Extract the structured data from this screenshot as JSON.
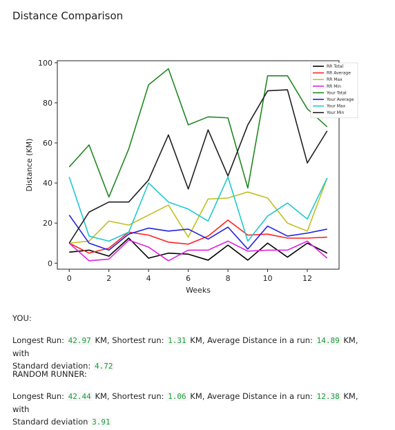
{
  "page_title": "Distance Comparison",
  "chart_data": {
    "type": "line",
    "xlabel": "Weeks",
    "ylabel": "Distance (KM)",
    "xlim": [
      -0.6,
      13.6
    ],
    "ylim": [
      -3,
      101
    ],
    "x_ticks": [
      0,
      2,
      4,
      6,
      8,
      10,
      12
    ],
    "y_ticks": [
      0,
      20,
      40,
      60,
      80,
      100
    ],
    "legend_position": "top-right",
    "x": [
      0,
      1,
      2,
      3,
      4,
      5,
      6,
      7,
      8,
      9,
      10,
      11,
      12,
      13
    ],
    "series": [
      {
        "name": "RR Total",
        "color": "#000000",
        "values": [
          5.5,
          6.5,
          3.5,
          12.5,
          2.5,
          5.0,
          4.5,
          1.5,
          9.0,
          1.5,
          10.0,
          3.0,
          10.0,
          5.0
        ]
      },
      {
        "name": "RR Average",
        "color": "#ff2020",
        "values": [
          10.0,
          5.0,
          7.5,
          15.5,
          14.0,
          10.5,
          9.5,
          13.5,
          21.5,
          14.0,
          14.5,
          12.5,
          12.5,
          13.0
        ]
      },
      {
        "name": "RR Max",
        "color": "#c0c020",
        "values": [
          10.0,
          11.0,
          21.0,
          19.0,
          24.0,
          29.0,
          13.0,
          32.0,
          32.5,
          35.5,
          32.5,
          20.0,
          16.0,
          42.5
        ]
      },
      {
        "name": "RR Min",
        "color": "#e020e0",
        "values": [
          10.0,
          1.2,
          2.0,
          11.5,
          8.0,
          1.2,
          6.5,
          6.5,
          11.0,
          6.0,
          6.5,
          6.5,
          11.0,
          2.5
        ]
      },
      {
        "name": "Your Total",
        "color": "#208820",
        "values": [
          48.0,
          59.0,
          33.0,
          57.0,
          89.0,
          97.0,
          69.0,
          73.0,
          72.5,
          37.5,
          93.5,
          93.5,
          77.0,
          68.0
        ]
      },
      {
        "name": "Your Average",
        "color": "#2020e0",
        "values": [
          24.0,
          10.0,
          6.5,
          14.5,
          17.5,
          16.0,
          17.0,
          12.0,
          18.0,
          7.0,
          18.5,
          13.5,
          15.0,
          17.0
        ]
      },
      {
        "name": "Your Max",
        "color": "#20c8d0",
        "values": [
          43.0,
          13.5,
          11.0,
          15.5,
          40.0,
          30.5,
          27.0,
          21.0,
          43.0,
          11.0,
          23.5,
          30.0,
          22.0,
          42.5
        ]
      },
      {
        "name": "Your Min",
        "color": "#202020",
        "values": [
          10.0,
          25.5,
          30.5,
          30.5,
          41.5,
          64.0,
          37.0,
          66.5,
          43.5,
          69.0,
          86.0,
          86.5,
          50.0,
          66.0
        ]
      }
    ]
  },
  "you": {
    "header": "YOU:",
    "longest_label": "Longest Run:",
    "longest_value": "42.97",
    "shortest_label": "KM, Shortest run:",
    "shortest_value": "1.31",
    "average_label": "KM, Average Distance in a run:",
    "average_value": "14.89",
    "with_label": "KM, with",
    "std_label": "Standard deviation:",
    "std_value": "4.72"
  },
  "random_runner": {
    "header": "RANDOM RUNNER:",
    "longest_label": "Longest Run:",
    "longest_value": "42.44",
    "shortest_label": "KM, Shortest run:",
    "shortest_value": "1.06",
    "average_label": "KM, Average Distance in a run:",
    "average_value": "12.38",
    "with_label": "KM, with",
    "std_label": "Standard deviation",
    "std_value": "3.91"
  }
}
